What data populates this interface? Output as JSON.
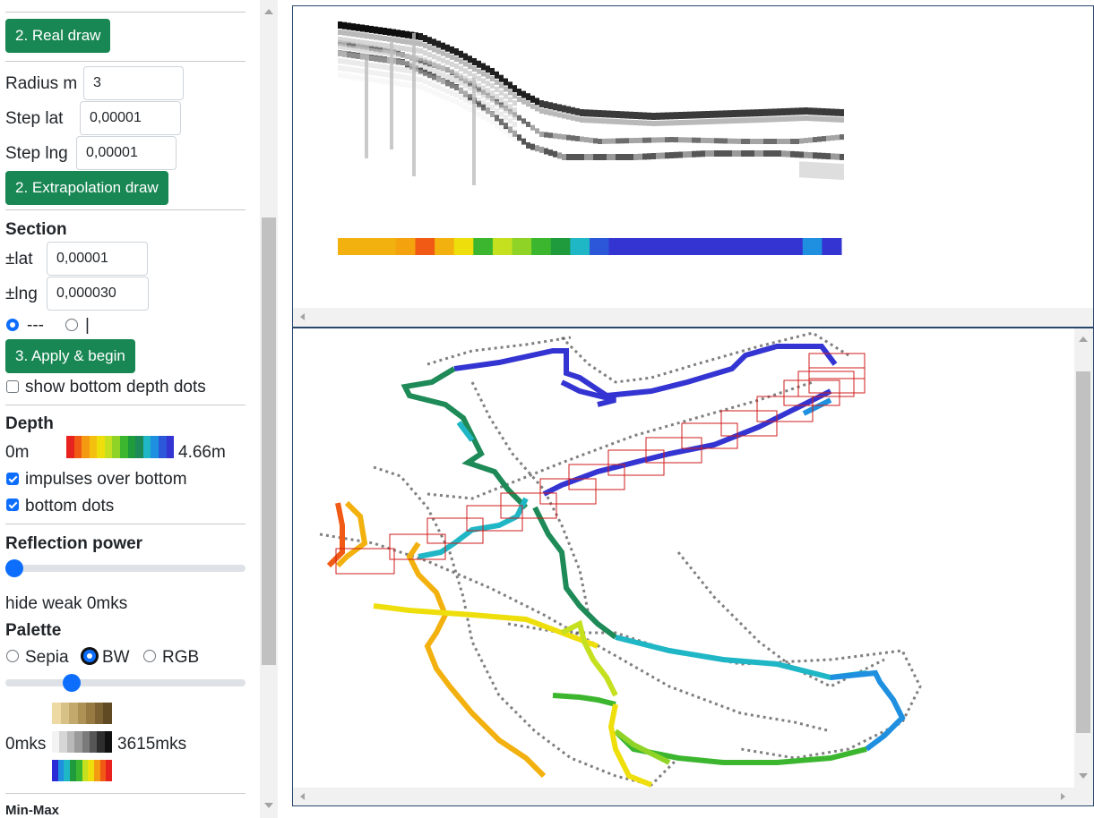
{
  "controls": {
    "real_draw_label": "2. Real draw",
    "radius_label": "Radius m",
    "radius_value": "3",
    "step_lat_label": "Step lat",
    "step_lat_value": "0,00001",
    "step_lng_label": "Step lng",
    "step_lng_value": "0,00001",
    "extrapolation_label": "2. Extrapolation draw"
  },
  "section": {
    "heading": "Section",
    "lat_label": "±lat",
    "lat_value": "0,00001",
    "lng_label": "±lng",
    "lng_value": "0,000030",
    "orientation_options": [
      "---",
      "|"
    ],
    "orientation_selected": "---",
    "apply_label": "3. Apply & begin",
    "show_dots_label": "show bottom depth dots",
    "show_dots_checked": false
  },
  "depth": {
    "heading": "Depth",
    "min_label": "0m",
    "max_label": "4.66m",
    "scale_colors": [
      "#e8231f",
      "#f05a14",
      "#f39a12",
      "#f4c010",
      "#eedf0c",
      "#c5e01e",
      "#8fd326",
      "#3bb62e",
      "#1f9a3c",
      "#1e8a57",
      "#1fb6c6",
      "#1f8fe0",
      "#2b57d8",
      "#3434d2"
    ],
    "impulses_label": "impulses over bottom",
    "impulses_checked": true,
    "bottom_dots_label": "bottom dots",
    "bottom_dots_checked": true
  },
  "reflection": {
    "heading": "Reflection power",
    "slider_value": 0,
    "hide_weak_label": "hide weak 0mks"
  },
  "palette": {
    "heading": "Palette",
    "options": [
      "Sepia",
      "BW",
      "RGB"
    ],
    "selected": "BW",
    "slider_value": 0.26,
    "min_label": "0mks",
    "max_label": "3615mks",
    "sepia_colors": [
      "#ecd9a4",
      "#d8c187",
      "#c4a96c",
      "#ae9255",
      "#967a42",
      "#7c6232",
      "#604a24"
    ],
    "bw_colors": [
      "#f3f3f3",
      "#d6d6d6",
      "#b9b9b9",
      "#9a9a9a",
      "#7a7a7a",
      "#565656",
      "#2e2e2e",
      "#111111"
    ],
    "rgb_colors": [
      "#2a2ad6",
      "#1f8fe0",
      "#1fb6c6",
      "#1f9a3c",
      "#3bb62e",
      "#c5e01e",
      "#eedf0c",
      "#f39a12",
      "#f05a14",
      "#e8231f"
    ]
  },
  "minmax": {
    "heading": "Min-Max"
  },
  "echogram": {
    "depth_bar_colors": [
      "#f2b10e",
      "#f2b10e",
      "#f2b10e",
      "#f5a20f",
      "#f05a14",
      "#f2b10e",
      "#eedf0c",
      "#3bb62e",
      "#c5e01e",
      "#8fd326",
      "#3bb62e",
      "#1f9a3c",
      "#1fb6c6",
      "#2b57d8",
      "#3434d2",
      "#3434d2",
      "#3434d2",
      "#3434d2",
      "#3434d2",
      "#3434d2",
      "#3434d2",
      "#3434d2",
      "#3434d2",
      "#3434d2",
      "#1f8fe0",
      "#3434d2"
    ]
  }
}
